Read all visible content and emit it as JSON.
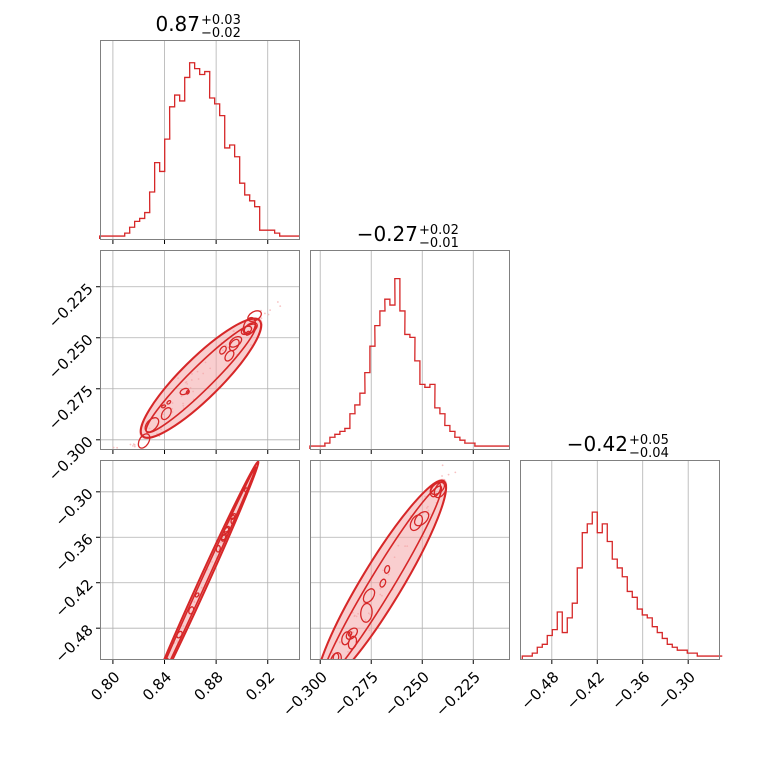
{
  "figure": {
    "titles": [
      {
        "main": "0.87",
        "plus": "+0.03",
        "minus": "−0.02"
      },
      {
        "main": "−0.27",
        "plus": "+0.02",
        "minus": "−0.01"
      },
      {
        "main": "−0.42",
        "plus": "+0.05",
        "minus": "−0.04"
      }
    ],
    "colors": {
      "line": "#d62728",
      "fill": "#f4a6a8",
      "grid": "#b0b0b0",
      "frame": "#808080"
    }
  },
  "chart_data": {
    "type": "corner",
    "parameters": [
      {
        "ticks": [
          0.8,
          0.84,
          0.88,
          0.92
        ],
        "tick_labels": [
          "0.80",
          "0.84",
          "0.88",
          "0.92"
        ],
        "range": [
          0.79,
          0.945
        ],
        "hist_x": [
          0.7917,
          0.7956,
          0.7994,
          0.8033,
          0.8072,
          0.8111,
          0.8149,
          0.8188,
          0.8227,
          0.8266,
          0.8304,
          0.8343,
          0.8382,
          0.8421,
          0.8459,
          0.8498,
          0.8537,
          0.8576,
          0.8614,
          0.8653,
          0.8692,
          0.8731,
          0.8769,
          0.8808,
          0.8847,
          0.8886,
          0.8924,
          0.8963,
          0.9002,
          0.9041,
          0.9079,
          0.9118,
          0.9157,
          0.9196,
          0.9234,
          0.9273,
          0.9312,
          0.9351,
          0.9389,
          0.9428
        ],
        "hist_counts": [
          1,
          1,
          1,
          1,
          1,
          2,
          4,
          6,
          7,
          9,
          16,
          26,
          23,
          34,
          45,
          49,
          47,
          55,
          60,
          58,
          56,
          57,
          48,
          46,
          42,
          31,
          32,
          28,
          19,
          15,
          13,
          11,
          3,
          3,
          3,
          2,
          1,
          1,
          1,
          1
        ],
        "hist_ylim": [
          0,
          64
        ]
      },
      {
        "ticks": [
          -0.3,
          -0.275,
          -0.25,
          -0.225
        ],
        "tick_labels": [
          "−0.300",
          "−0.275",
          "−0.250",
          "−0.225"
        ],
        "range": [
          -0.305,
          -0.207
        ],
        "hist_x": [
          -0.3038,
          -0.3013,
          -0.2989,
          -0.2965,
          -0.294,
          -0.2916,
          -0.2891,
          -0.2867,
          -0.2842,
          -0.2818,
          -0.2793,
          -0.2769,
          -0.2744,
          -0.272,
          -0.2695,
          -0.2671,
          -0.2646,
          -0.2622,
          -0.2597,
          -0.2573,
          -0.2548,
          -0.2524,
          -0.2499,
          -0.2475,
          -0.245,
          -0.2426,
          -0.2401,
          -0.2377,
          -0.2352,
          -0.2328,
          -0.2303,
          -0.2279,
          -0.2254,
          -0.223,
          -0.2205,
          -0.2181,
          -0.2156,
          -0.2132,
          -0.2107,
          -0.2083
        ],
        "hist_counts": [
          1,
          1,
          1,
          2,
          4,
          5,
          6,
          7,
          12,
          15,
          19,
          26,
          35,
          42,
          47,
          51,
          49,
          58,
          47,
          39,
          38,
          30,
          22,
          21,
          22,
          14,
          12,
          8,
          6,
          4,
          3,
          2,
          2,
          1,
          1,
          1,
          1,
          1,
          1,
          1
        ],
        "hist_ylim": [
          0,
          64
        ]
      },
      {
        "ticks": [
          -0.48,
          -0.42,
          -0.36,
          -0.3
        ],
        "tick_labels": [
          "−0.48",
          "−0.42",
          "−0.36",
          "−0.30"
        ],
        "range": [
          -0.522,
          -0.258
        ],
        "hist_x": [
          -0.5157,
          -0.5091,
          -0.5025,
          -0.4959,
          -0.4893,
          -0.4827,
          -0.4761,
          -0.4695,
          -0.4629,
          -0.4563,
          -0.4497,
          -0.4431,
          -0.4365,
          -0.4299,
          -0.4233,
          -0.4167,
          -0.4101,
          -0.4035,
          -0.3969,
          -0.3903,
          -0.3837,
          -0.3771,
          -0.3705,
          -0.3639,
          -0.3573,
          -0.3507,
          -0.3441,
          -0.3375,
          -0.3309,
          -0.3243,
          -0.3177,
          -0.3111,
          -0.3045,
          -0.2979,
          -0.2913,
          -0.2847,
          -0.2781,
          -0.2715,
          -0.2649,
          -0.2583
        ],
        "hist_counts": [
          1,
          1,
          2,
          4,
          5,
          8,
          10,
          16,
          9,
          14,
          19,
          31,
          43,
          46,
          50,
          43,
          46,
          40,
          34,
          31,
          28,
          23,
          21,
          17,
          15,
          14,
          11,
          9,
          7,
          5,
          4,
          3,
          3,
          2,
          2,
          1,
          1,
          1,
          1,
          1
        ],
        "hist_ylim": [
          0,
          64
        ]
      }
    ],
    "joint": [
      {
        "pair": [
          0,
          1
        ],
        "slope": 0.625,
        "intercept": -0.8125,
        "spread": 0.0048,
        "contour_x": [
          0.824,
          0.9125
        ],
        "noise_x": [
          0.8,
          0.93
        ]
      },
      {
        "pair": [
          0,
          2
        ],
        "slope": 3.75,
        "intercept": -3.6825,
        "spread": 0.0045,
        "contour_x": [
          0.826,
          0.912
        ],
        "noise_x": [
          0.8,
          0.935
        ]
      },
      {
        "pair": [
          1,
          2
        ],
        "slope": 4.45,
        "intercept": 0.78,
        "spread": 0.018,
        "contour_x": [
          -0.3,
          -0.24
        ],
        "noise_x": [
          -0.303,
          -0.23
        ]
      }
    ],
    "grid": true
  }
}
